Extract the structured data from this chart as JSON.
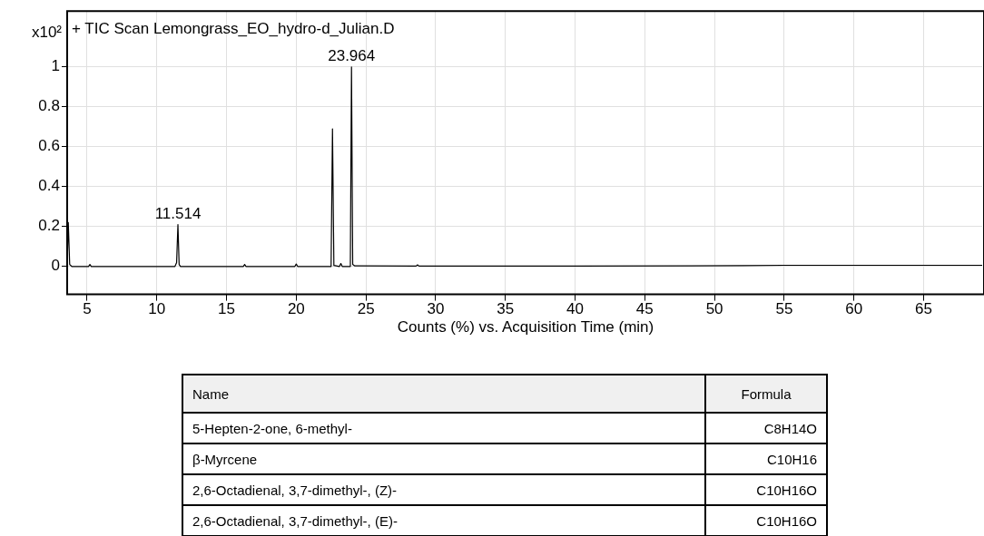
{
  "chart_data": {
    "type": "line",
    "title": "+ TIC Scan Lemongrass_EO_hydro-d_Julian.D",
    "xlabel": "Counts (%) vs. Acquisition Time (min)",
    "ylabel": "x10²",
    "series": [
      {
        "color": "#000000",
        "x": [
          3.57,
          3.65,
          3.75,
          3.9,
          5.1,
          5.2,
          5.3,
          11.3,
          11.42,
          11.514,
          11.6,
          11.7,
          16.2,
          16.3,
          16.4,
          19.9,
          20.0,
          20.1,
          22.5,
          22.6,
          22.7,
          23.1,
          23.2,
          23.3,
          23.88,
          23.964,
          24.05,
          24.2,
          28.6,
          28.7,
          28.8,
          40,
          52,
          55,
          69.2
        ],
        "values": [
          0.0,
          0.22,
          0.01,
          0.0,
          0.0,
          0.01,
          0.0,
          0.0,
          0.02,
          0.21,
          0.01,
          0.0,
          0.0,
          0.01,
          0.0,
          0.0,
          0.012,
          0.0,
          0.0,
          0.69,
          0.005,
          0.0,
          0.015,
          0.0,
          0.0,
          1.0,
          0.01,
          0.003,
          0.002,
          0.008,
          0.002,
          0.002,
          0.004,
          0.006,
          0.006
        ]
      }
    ],
    "xlim": [
      3.57,
      69.2
    ],
    "xticks": [
      5,
      10,
      15,
      20,
      25,
      30,
      35,
      40,
      45,
      50,
      55,
      60,
      65
    ],
    "ylim": [
      -0.14,
      1.28
    ],
    "yticks": [
      0,
      0.2,
      0.4,
      0.6,
      0.8,
      1
    ],
    "grid": true,
    "legend": false,
    "marker": "none",
    "line_style": "solid",
    "annotations": [
      {
        "text": "23.964",
        "x": 23.964,
        "y": 1.0
      },
      {
        "text": "11.514",
        "x": 11.514,
        "y": 0.21
      },
      "Name",
      "Formula",
      "5-Hepten-2-one, 6-methyl-",
      "C8H14O",
      "β-Myrcene",
      "C10H16",
      "2,6-Octadienal, 3,7-dimethyl-, (Z)-",
      "C10H16O",
      "2,6-Octadienal, 3,7-dimethyl-, (E)-",
      "C10H16O"
    ]
  }
}
